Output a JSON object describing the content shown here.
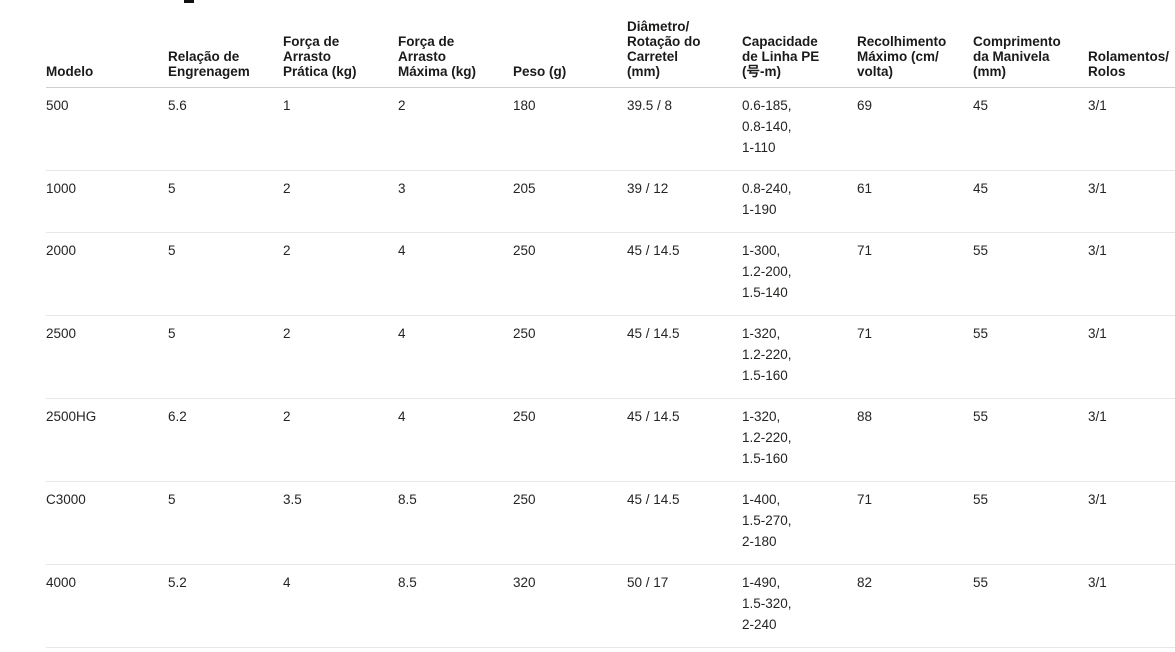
{
  "table": {
    "columns": [
      {
        "label": "Modelo"
      },
      {
        "label": "Relação de\nEngrenagem"
      },
      {
        "label": "Força de\nArrasto\nPrática (kg)"
      },
      {
        "label": "Força de\nArrasto\nMáxima (kg)"
      },
      {
        "label": "Peso (g)"
      },
      {
        "label": "Diâmetro/\nRotação do\nCarretel\n(mm)"
      },
      {
        "label": "Capacidade\nde Linha PE\n(号-m)"
      },
      {
        "label": "Recolhimento\nMáximo (cm/\nvolta)"
      },
      {
        "label": "Comprimento\nda Manivela\n(mm)"
      },
      {
        "label": "Rolamentos/\nRolos"
      }
    ],
    "rows": [
      {
        "cells": [
          "500",
          "5.6",
          "1",
          "2",
          "180",
          "39.5 / 8",
          "0.6-185,\n0.8-140,\n1-110",
          "69",
          "45",
          "3/1"
        ]
      },
      {
        "cells": [
          "1000",
          "5",
          "2",
          "3",
          "205",
          "39 / 12",
          "0.8-240,\n1-190",
          "61",
          "45",
          "3/1"
        ]
      },
      {
        "cells": [
          "2000",
          "5",
          "2",
          "4",
          "250",
          "45 / 14.5",
          "1-300,\n1.2-200,\n1.5-140",
          "71",
          "55",
          "3/1"
        ]
      },
      {
        "cells": [
          "2500",
          "5",
          "2",
          "4",
          "250",
          "45 / 14.5",
          "1-320,\n1.2-220,\n1.5-160",
          "71",
          "55",
          "3/1"
        ]
      },
      {
        "cells": [
          "2500HG",
          "6.2",
          "2",
          "4",
          "250",
          "45 / 14.5",
          "1-320,\n1.2-220,\n1.5-160",
          "88",
          "55",
          "3/1"
        ]
      },
      {
        "cells": [
          "C3000",
          "5",
          "3.5",
          "8.5",
          "250",
          "45 / 14.5",
          "1-400,\n1.5-270,\n2-180",
          "71",
          "55",
          "3/1"
        ]
      },
      {
        "cells": [
          "4000",
          "5.2",
          "4",
          "8.5",
          "320",
          "50 / 17",
          "1-490,\n1.5-320,\n2-240",
          "82",
          "55",
          "3/1"
        ]
      }
    ]
  }
}
